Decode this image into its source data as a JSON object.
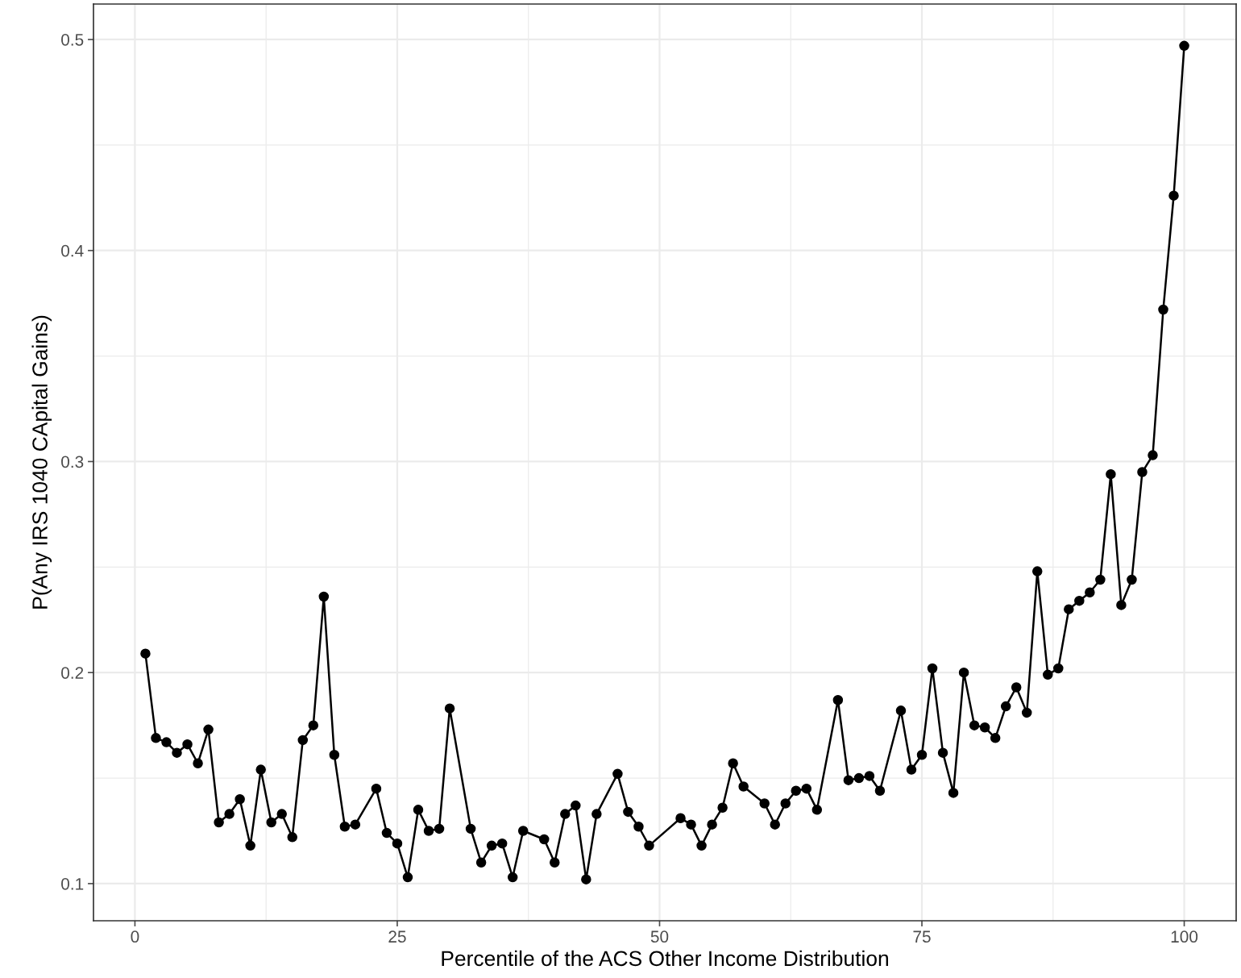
{
  "chart_data": {
    "type": "line",
    "xlabel": "Percentile of the ACS Other Income Distribution",
    "ylabel": "P(Any IRS 1040 CApital Gains)",
    "x": [
      1,
      2,
      3,
      4,
      5,
      6,
      7,
      8,
      9,
      10,
      11,
      12,
      13,
      14,
      15,
      16,
      17,
      18,
      19,
      20,
      21,
      23,
      24,
      25,
      26,
      27,
      28,
      29,
      30,
      32,
      33,
      34,
      35,
      36,
      37,
      39,
      40,
      41,
      42,
      43,
      44,
      46,
      47,
      48,
      49,
      52,
      53,
      54,
      55,
      56,
      57,
      58,
      60,
      61,
      62,
      63,
      64,
      65,
      67,
      68,
      69,
      70,
      71,
      73,
      74,
      75,
      76,
      77,
      78,
      79,
      80,
      81,
      82,
      83,
      84,
      85,
      86,
      87,
      88,
      89,
      90,
      91,
      92,
      93,
      94,
      95,
      96,
      97,
      98,
      99,
      100
    ],
    "series": [
      {
        "color": "#000000",
        "values": [
          0.209,
          0.169,
          0.167,
          0.162,
          0.166,
          0.157,
          0.173,
          0.129,
          0.133,
          0.14,
          0.118,
          0.154,
          0.129,
          0.133,
          0.122,
          0.168,
          0.175,
          0.236,
          0.161,
          0.127,
          0.128,
          0.145,
          0.124,
          0.119,
          0.103,
          0.135,
          0.125,
          0.126,
          0.183,
          0.126,
          0.11,
          0.118,
          0.119,
          0.103,
          0.125,
          0.121,
          0.11,
          0.133,
          0.137,
          0.102,
          0.133,
          0.152,
          0.134,
          0.127,
          0.118,
          0.131,
          0.128,
          0.118,
          0.128,
          0.136,
          0.157,
          0.146,
          0.138,
          0.128,
          0.138,
          0.144,
          0.145,
          0.135,
          0.187,
          0.149,
          0.15,
          0.151,
          0.144,
          0.182,
          0.154,
          0.161,
          0.202,
          0.162,
          0.143,
          0.2,
          0.175,
          0.174,
          0.169,
          0.184,
          0.193,
          0.181,
          0.248,
          0.199,
          0.202,
          0.23,
          0.234,
          0.238,
          0.244,
          0.294,
          0.232,
          0.244,
          0.295,
          0.303,
          0.372,
          0.426,
          0.497
        ]
      }
    ],
    "xlim": [
      -3.95,
      104.95
    ],
    "ylim": [
      0.0824,
      0.5168
    ],
    "xticks": [
      0,
      25,
      50,
      75,
      100
    ],
    "yticks": [
      0.1,
      0.2,
      0.3,
      0.4,
      0.5
    ],
    "grid": true,
    "marker": "circle",
    "line_style": "solid"
  }
}
